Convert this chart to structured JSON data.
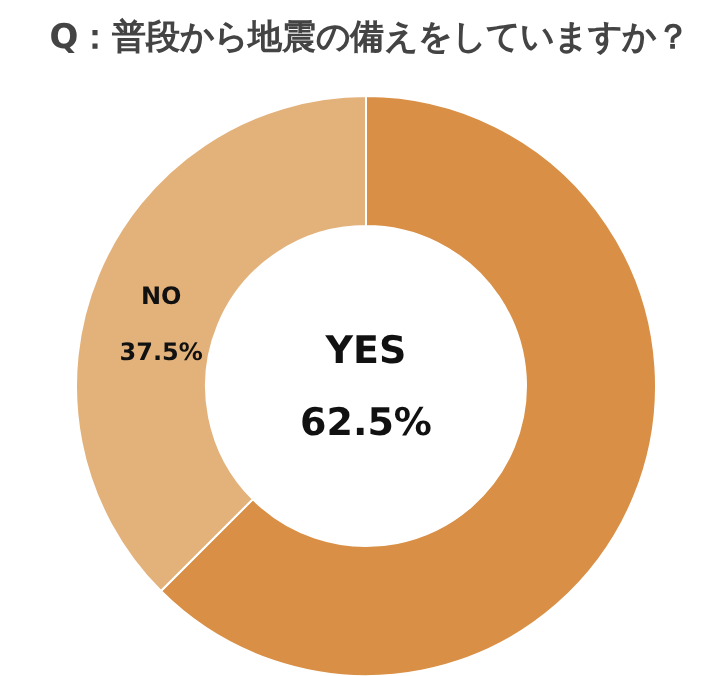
{
  "chart_data": {
    "type": "donut",
    "title": "Q：普段から地震の備えをしていますか？",
    "categories": [
      "YES",
      "NO"
    ],
    "values": [
      62.5,
      37.5
    ],
    "colors": [
      "#d98f45",
      "#e3b27b"
    ],
    "value_labels": [
      "62.5%",
      "37.5%"
    ]
  }
}
